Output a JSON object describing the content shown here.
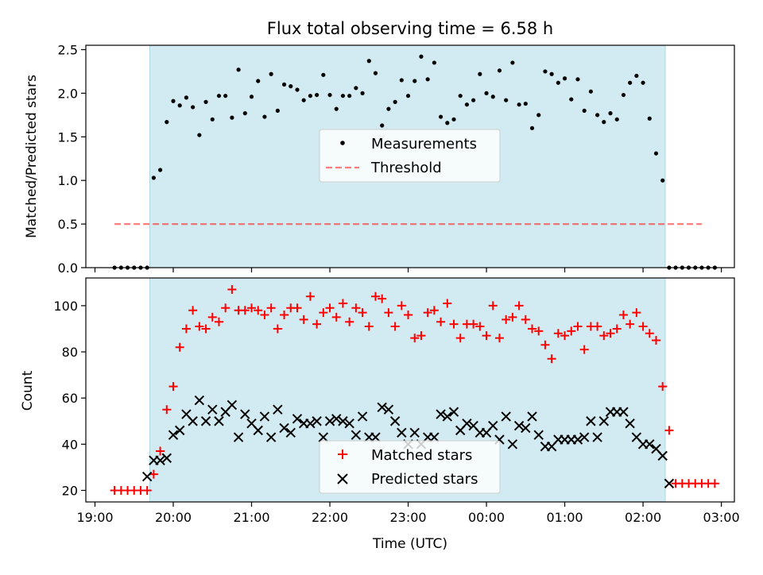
{
  "chart_data": {
    "title": "Flux total observing time = 6.58 h",
    "type": "scatter",
    "xlabel": "Time (UTC)",
    "x_tick_labels": [
      "19:00",
      "20:00",
      "21:00",
      "22:00",
      "23:00",
      "00:00",
      "01:00",
      "02:00",
      "03:00"
    ],
    "xlim": [
      "18:53",
      "03:10"
    ],
    "observing_window": [
      "19:42",
      "02:17"
    ],
    "colors": {
      "window": "#add8e6",
      "measurements": "#000000",
      "threshold": "#ff0000",
      "matched": "#ff0000",
      "predicted": "#000000"
    },
    "panels": [
      {
        "ylabel": "Matched/Predicted stars",
        "ylim": [
          0,
          2.55
        ],
        "y_ticks": [
          "0.0",
          "0.5",
          "1.0",
          "1.5",
          "2.0",
          "2.5"
        ],
        "legend_position": "center",
        "series": [
          {
            "name": "Measurements",
            "kind": "scatter",
            "x": [
              "19:15",
              "19:20",
              "19:25",
              "19:30",
              "19:35",
              "19:40",
              "19:45",
              "19:50",
              "19:55",
              "20:00",
              "20:05",
              "20:10",
              "20:15",
              "20:20",
              "20:25",
              "20:30",
              "20:35",
              "20:40",
              "20:45",
              "20:50",
              "20:55",
              "21:00",
              "21:05",
              "21:10",
              "21:15",
              "21:20",
              "21:25",
              "21:30",
              "21:35",
              "21:40",
              "21:45",
              "21:50",
              "21:55",
              "22:00",
              "22:05",
              "22:10",
              "22:15",
              "22:20",
              "22:25",
              "22:30",
              "22:35",
              "22:40",
              "22:45",
              "22:50",
              "22:55",
              "23:00",
              "23:05",
              "23:10",
              "23:15",
              "23:20",
              "23:25",
              "23:30",
              "23:35",
              "23:40",
              "23:45",
              "23:50",
              "23:55",
              "00:00",
              "00:05",
              "00:10",
              "00:15",
              "00:20",
              "00:25",
              "00:30",
              "00:35",
              "00:40",
              "00:45",
              "00:50",
              "00:55",
              "01:00",
              "01:05",
              "01:10",
              "01:15",
              "01:20",
              "01:25",
              "01:30",
              "01:35",
              "01:40",
              "01:45",
              "01:50",
              "01:55",
              "02:00",
              "02:05",
              "02:10",
              "02:15",
              "02:20",
              "02:25",
              "02:30",
              "02:35",
              "02:40",
              "02:45",
              "02:50",
              "02:55"
            ],
            "y": [
              0,
              0,
              0,
              0,
              0,
              0,
              1.03,
              1.12,
              1.67,
              1.91,
              1.86,
              1.95,
              1.84,
              1.52,
              1.9,
              1.7,
              1.97,
              1.97,
              1.72,
              2.27,
              1.77,
              1.96,
              2.14,
              1.73,
              2.22,
              1.8,
              2.1,
              2.08,
              2.04,
              1.92,
              1.97,
              1.98,
              2.21,
              1.98,
              1.82,
              1.97,
              1.97,
              2.06,
              2.0,
              2.37,
              2.23,
              1.63,
              1.82,
              1.9,
              2.15,
              1.97,
              2.14,
              2.42,
              2.16,
              2.35,
              1.73,
              1.66,
              1.7,
              1.97,
              1.87,
              1.92,
              2.22,
              2.0,
              1.96,
              2.26,
              1.92,
              2.35,
              1.87,
              1.88,
              1.6,
              1.75,
              2.25,
              2.22,
              2.12,
              2.17,
              1.93,
              2.16,
              1.8,
              2.02,
              1.75,
              1.67,
              1.77,
              1.7,
              1.98,
              2.12,
              2.2,
              2.12,
              1.71,
              1.31,
              1.0,
              0,
              0,
              0,
              0,
              0,
              0,
              0,
              0
            ]
          },
          {
            "name": "Threshold",
            "kind": "line",
            "x": [
              "19:15",
              "02:45"
            ],
            "y": [
              0.5,
              0.5
            ]
          }
        ]
      },
      {
        "ylabel": "Count",
        "ylim": [
          15,
          112
        ],
        "y_ticks": [
          "20",
          "40",
          "60",
          "80",
          "100"
        ],
        "legend_position": "lower center",
        "series": [
          {
            "name": "Matched stars",
            "kind": "scatter",
            "marker": "plus",
            "x": [
              "19:15",
              "19:20",
              "19:25",
              "19:30",
              "19:35",
              "19:40",
              "19:45",
              "19:50",
              "19:55",
              "20:00",
              "20:05",
              "20:10",
              "20:15",
              "20:20",
              "20:25",
              "20:30",
              "20:35",
              "20:40",
              "20:45",
              "20:50",
              "20:55",
              "21:00",
              "21:05",
              "21:10",
              "21:15",
              "21:20",
              "21:25",
              "21:30",
              "21:35",
              "21:40",
              "21:45",
              "21:50",
              "21:55",
              "22:00",
              "22:05",
              "22:10",
              "22:15",
              "22:20",
              "22:25",
              "22:30",
              "22:35",
              "22:40",
              "22:45",
              "22:50",
              "22:55",
              "23:00",
              "23:05",
              "23:10",
              "23:15",
              "23:20",
              "23:25",
              "23:30",
              "23:35",
              "23:40",
              "23:45",
              "23:50",
              "23:55",
              "00:00",
              "00:05",
              "00:10",
              "00:15",
              "00:20",
              "00:25",
              "00:30",
              "00:35",
              "00:40",
              "00:45",
              "00:50",
              "00:55",
              "01:00",
              "01:05",
              "01:10",
              "01:15",
              "01:20",
              "01:25",
              "01:30",
              "01:35",
              "01:40",
              "01:45",
              "01:50",
              "01:55",
              "02:00",
              "02:05",
              "02:10",
              "02:15",
              "02:20",
              "02:25",
              "02:30",
              "02:35",
              "02:40",
              "02:45",
              "02:50",
              "02:55"
            ],
            "y": [
              20,
              20,
              20,
              20,
              20,
              20,
              27,
              37,
              55,
              65,
              82,
              90,
              98,
              91,
              90,
              95,
              93,
              99,
              107,
              98,
              98,
              99,
              98,
              96,
              99,
              90,
              96,
              99,
              99,
              94,
              104,
              92,
              97,
              99,
              95,
              101,
              93,
              99,
              97,
              91,
              104,
              103,
              97,
              91,
              100,
              96,
              86,
              87,
              97,
              98,
              93,
              101,
              92,
              86,
              92,
              92,
              91,
              87,
              100,
              86,
              94,
              95,
              100,
              94,
              90,
              89,
              83,
              77,
              88,
              87,
              89,
              91,
              81,
              91,
              91,
              87,
              88,
              90,
              96,
              92,
              97,
              91,
              88,
              85,
              65,
              46,
              23,
              23,
              23,
              23,
              23,
              23,
              23
            ]
          },
          {
            "name": "Predicted stars",
            "kind": "scatter",
            "marker": "x",
            "x": [
              "19:40",
              "19:45",
              "19:50",
              "19:55",
              "20:00",
              "20:05",
              "20:10",
              "20:15",
              "20:20",
              "20:25",
              "20:30",
              "20:35",
              "20:40",
              "20:45",
              "20:50",
              "20:55",
              "21:00",
              "21:05",
              "21:10",
              "21:15",
              "21:20",
              "21:25",
              "21:30",
              "21:35",
              "21:40",
              "21:45",
              "21:50",
              "21:55",
              "22:00",
              "22:05",
              "22:10",
              "22:15",
              "22:20",
              "22:25",
              "22:30",
              "22:35",
              "22:40",
              "22:45",
              "22:50",
              "22:55",
              "23:00",
              "23:05",
              "23:10",
              "23:15",
              "23:20",
              "23:25",
              "23:30",
              "23:35",
              "23:40",
              "23:45",
              "23:50",
              "23:55",
              "00:00",
              "00:05",
              "00:10",
              "00:15",
              "00:20",
              "00:25",
              "00:30",
              "00:35",
              "00:40",
              "00:45",
              "00:50",
              "00:55",
              "01:00",
              "01:05",
              "01:10",
              "01:15",
              "01:20",
              "01:25",
              "01:30",
              "01:35",
              "01:40",
              "01:45",
              "01:50",
              "01:55",
              "02:00",
              "02:05",
              "02:10",
              "02:15",
              "02:20"
            ],
            "y": [
              26,
              33,
              33,
              34,
              44,
              46,
              53,
              50,
              59,
              50,
              55,
              50,
              54,
              57,
              43,
              53,
              49,
              46,
              52,
              43,
              55,
              47,
              45,
              51,
              49,
              49,
              50,
              43,
              50,
              51,
              50,
              49,
              44,
              52,
              43,
              43,
              56,
              55,
              50,
              45,
              40,
              45,
              40,
              43,
              43,
              53,
              52,
              54,
              46,
              49,
              48,
              45,
              45,
              48,
              42,
              52,
              40,
              48,
              47,
              52,
              44,
              39,
              39,
              42,
              42,
              42,
              42,
              43,
              50,
              43,
              50,
              54,
              54,
              54,
              49,
              43,
              40,
              40,
              38,
              35,
              23
            ]
          }
        ]
      }
    ]
  }
}
